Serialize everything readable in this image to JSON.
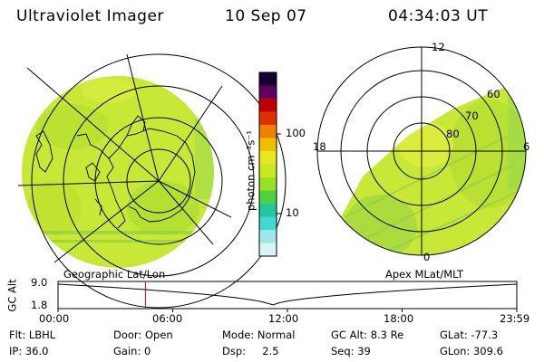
{
  "header": {
    "instrument": "Ultraviolet Imager",
    "date": "10 Sep 07",
    "time": "04:34:03 UT"
  },
  "colorbar": {
    "unit_label": "photon cm⁻²s⁻¹",
    "tick_100": "100",
    "tick_10": "10",
    "colors": [
      "#d8f4f4",
      "#9fe8e8",
      "#40d8d0",
      "#20c8a0",
      "#50d040",
      "#98e020",
      "#c8e820",
      "#e8e820",
      "#f0c000",
      "#f08000",
      "#e03000",
      "#c00000",
      "#600060",
      "#100030"
    ]
  },
  "left_map": {
    "projection_label": "Geographic Lat/Lon"
  },
  "right_map": {
    "projection_label": "Apex MLat/MLT",
    "mlt_labels": {
      "top": "12",
      "left": "18",
      "right": "6",
      "bottom": "0"
    },
    "lat_labels": [
      "60",
      "70",
      "80"
    ]
  },
  "altitude_plot": {
    "ylabel": "GC Alt",
    "y_ticks": [
      "9.0",
      "1.8"
    ],
    "x_ticks": [
      "00:00",
      "06:00",
      "12:00",
      "18:00",
      "23:59"
    ],
    "current_time_marker_hours": 4.57,
    "marker_color": "#cc0000"
  },
  "status": {
    "row1": {
      "flt": "Flt: LBHL",
      "door": "Door: Open",
      "mode": "Mode: Normal",
      "gcalt": "GC Alt: 8.3 Re",
      "glat": "GLat: -77.3"
    },
    "row2": {
      "ip": "IP: 36.0",
      "gain": "Gain:   0",
      "dsp": "Dsp:     2.5",
      "seq": "Seq: 39",
      "glon": "GLon: 309.6"
    }
  }
}
